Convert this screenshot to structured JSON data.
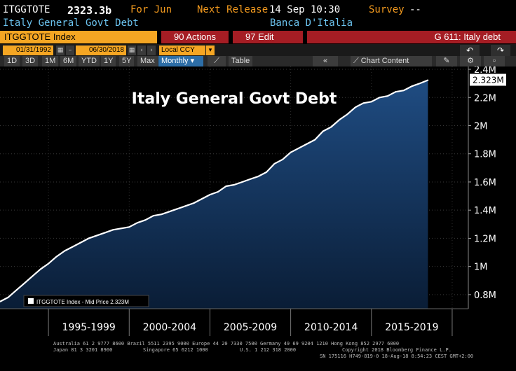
{
  "header": {
    "ticker": "ITGGTOTE",
    "value": "2323.3b",
    "period": "For Jun",
    "next_release_label": "Next Release",
    "next_release_value": "14 Sep 10:30",
    "survey_label": "Survey",
    "survey_value": "--",
    "subtitle": "Italy General Govt Debt",
    "source": "Banca D'Italia"
  },
  "toolbar": {
    "index_label": "ITGGTOTE Index",
    "actions_label": "90 Actions",
    "edit_label": "97 Edit",
    "page_label": "G 611: Italy debt"
  },
  "controls": {
    "start_date": "01/31/1992",
    "end_date": "06/30/2018",
    "currency": "Local CCY",
    "ranges": [
      "1D",
      "3D",
      "1M",
      "6M",
      "YTD",
      "1Y",
      "5Y",
      "Max"
    ],
    "frequency": "Monthly",
    "table_label": "Table",
    "chart_content_label": "Chart Content"
  },
  "chart_data": {
    "type": "area",
    "title": "Italy General Govt Debt",
    "legend": "ITGGTOTE Index - Mid Price 2.323M",
    "last_value_label": "2.323M",
    "y_ticks": [
      "0.8M",
      "1M",
      "1.2M",
      "1.4M",
      "1.6M",
      "1.8M",
      "2M",
      "2.2M",
      "2.4M"
    ],
    "y_tick_values": [
      0.8,
      1.0,
      1.2,
      1.4,
      1.6,
      1.8,
      2.0,
      2.2,
      2.4
    ],
    "ylim": [
      0.7,
      2.42
    ],
    "xlim": [
      1992.0,
      2021.0
    ],
    "x_tick_labels": [
      "1995-1999",
      "2000-2004",
      "2005-2009",
      "2010-2014",
      "2015-2019"
    ],
    "x_tick_years": [
      1995,
      2000,
      2005,
      2010,
      2015,
      2020
    ],
    "x": [
      1992.0,
      1992.5,
      1993.0,
      1993.5,
      1994.0,
      1994.5,
      1995.0,
      1995.5,
      1996.0,
      1996.5,
      1997.0,
      1997.5,
      1998.0,
      1998.5,
      1999.0,
      1999.5,
      2000.0,
      2000.5,
      2001.0,
      2001.5,
      2002.0,
      2002.5,
      2003.0,
      2003.5,
      2004.0,
      2004.5,
      2005.0,
      2005.5,
      2006.0,
      2006.5,
      2007.0,
      2007.5,
      2008.0,
      2008.5,
      2009.0,
      2009.5,
      2010.0,
      2010.5,
      2011.0,
      2011.5,
      2012.0,
      2012.5,
      2013.0,
      2013.5,
      2014.0,
      2014.5,
      2015.0,
      2015.5,
      2016.0,
      2016.5,
      2017.0,
      2017.5,
      2018.0,
      2018.5
    ],
    "values": [
      0.75,
      0.78,
      0.83,
      0.88,
      0.93,
      0.98,
      1.02,
      1.07,
      1.11,
      1.14,
      1.17,
      1.2,
      1.22,
      1.24,
      1.26,
      1.27,
      1.28,
      1.31,
      1.33,
      1.36,
      1.37,
      1.39,
      1.41,
      1.43,
      1.45,
      1.48,
      1.51,
      1.53,
      1.57,
      1.58,
      1.6,
      1.62,
      1.64,
      1.67,
      1.73,
      1.76,
      1.81,
      1.84,
      1.87,
      1.9,
      1.96,
      1.99,
      2.04,
      2.08,
      2.13,
      2.16,
      2.17,
      2.2,
      2.21,
      2.24,
      2.25,
      2.28,
      2.3,
      2.323
    ],
    "colors": {
      "line": "#ffffff",
      "area_top": "#1f4c82",
      "area_bottom": "#0a1d36",
      "background": "#000000",
      "title": "#ffffff"
    }
  },
  "footer": {
    "line1": "Australia 61 2 9777 8600 Brazil 5511 2395 9000 Europe 44 20 7330 7500 Germany 49 69 9204 1210 Hong Kong 852 2977 6000",
    "line2a": "Japan 81 3 3201 8900",
    "line2b": "Singapore 65 6212 1000",
    "line2c": "U.S. 1 212 318 2000",
    "line2d": "Copyright 2018 Bloomberg Finance L.P.",
    "line3": "SN 175116 H749-819-0 18-Aug-18  8:54:23 CEST GMT+2:00"
  }
}
